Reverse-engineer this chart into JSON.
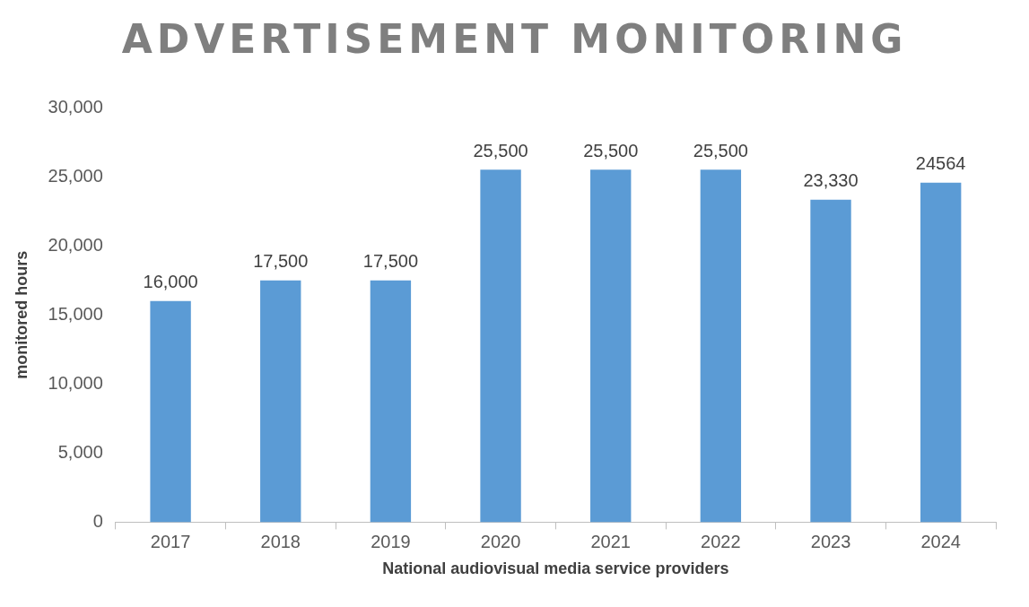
{
  "chart_data": {
    "type": "bar",
    "title": "ADVERTISEMENT MONITORING",
    "xlabel": "National audiovisual media service providers",
    "ylabel": "monitored hours",
    "categories": [
      "2017",
      "2018",
      "2019",
      "2020",
      "2021",
      "2022",
      "2023",
      "2024"
    ],
    "values": [
      16000,
      17500,
      17500,
      25500,
      25500,
      25500,
      23330,
      24564
    ],
    "value_labels": [
      "16,000",
      "17,500",
      "17,500",
      "25,500",
      "25,500",
      "25,500",
      "23,330",
      "24564"
    ],
    "color": "#5b9bd5",
    "ylim": [
      0,
      30000
    ],
    "yticks": [
      {
        "value": 0,
        "label": "0"
      },
      {
        "value": 5000,
        "label": "5,000"
      },
      {
        "value": 10000,
        "label": "10,000"
      },
      {
        "value": 15000,
        "label": "15,000"
      },
      {
        "value": 20000,
        "label": "20,000"
      },
      {
        "value": 25000,
        "label": "25,000"
      },
      {
        "value": 30000,
        "label": "30,000"
      }
    ],
    "grid": false,
    "legend": false
  }
}
